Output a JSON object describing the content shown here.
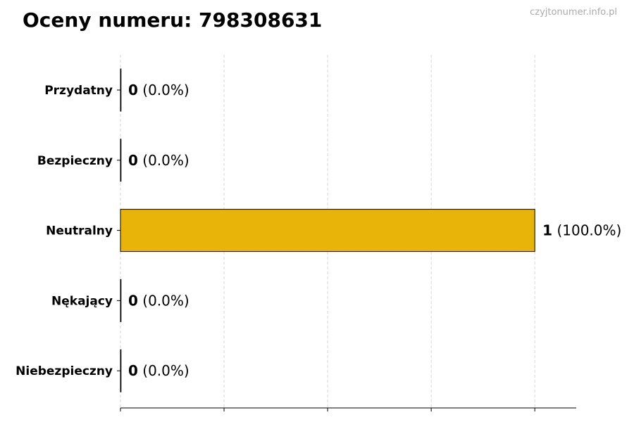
{
  "chart_data": {
    "type": "bar",
    "orientation": "horizontal",
    "title": "Oceny numeru: 798308631",
    "watermark": "czyjtonumer.info.pl",
    "categories": [
      "Przydatny",
      "Bezpieczny",
      "Neutralny",
      "Nękający",
      "Niebezpieczny"
    ],
    "values": [
      0,
      0,
      1,
      0,
      0
    ],
    "labels": [
      {
        "count": "0",
        "pct": "(0.0%)"
      },
      {
        "count": "0",
        "pct": "(0.0%)"
      },
      {
        "count": "1",
        "pct": "(100.0%)"
      },
      {
        "count": "0",
        "pct": "(0.0%)"
      },
      {
        "count": "0",
        "pct": "(0.0%)"
      }
    ],
    "xlim": [
      0,
      1.1
    ],
    "xticks": [
      0,
      0.25,
      0.5,
      0.75,
      1
    ],
    "grid": "x, dashed",
    "bar_color": "#E8B40A",
    "xlabel": "",
    "ylabel": ""
  }
}
